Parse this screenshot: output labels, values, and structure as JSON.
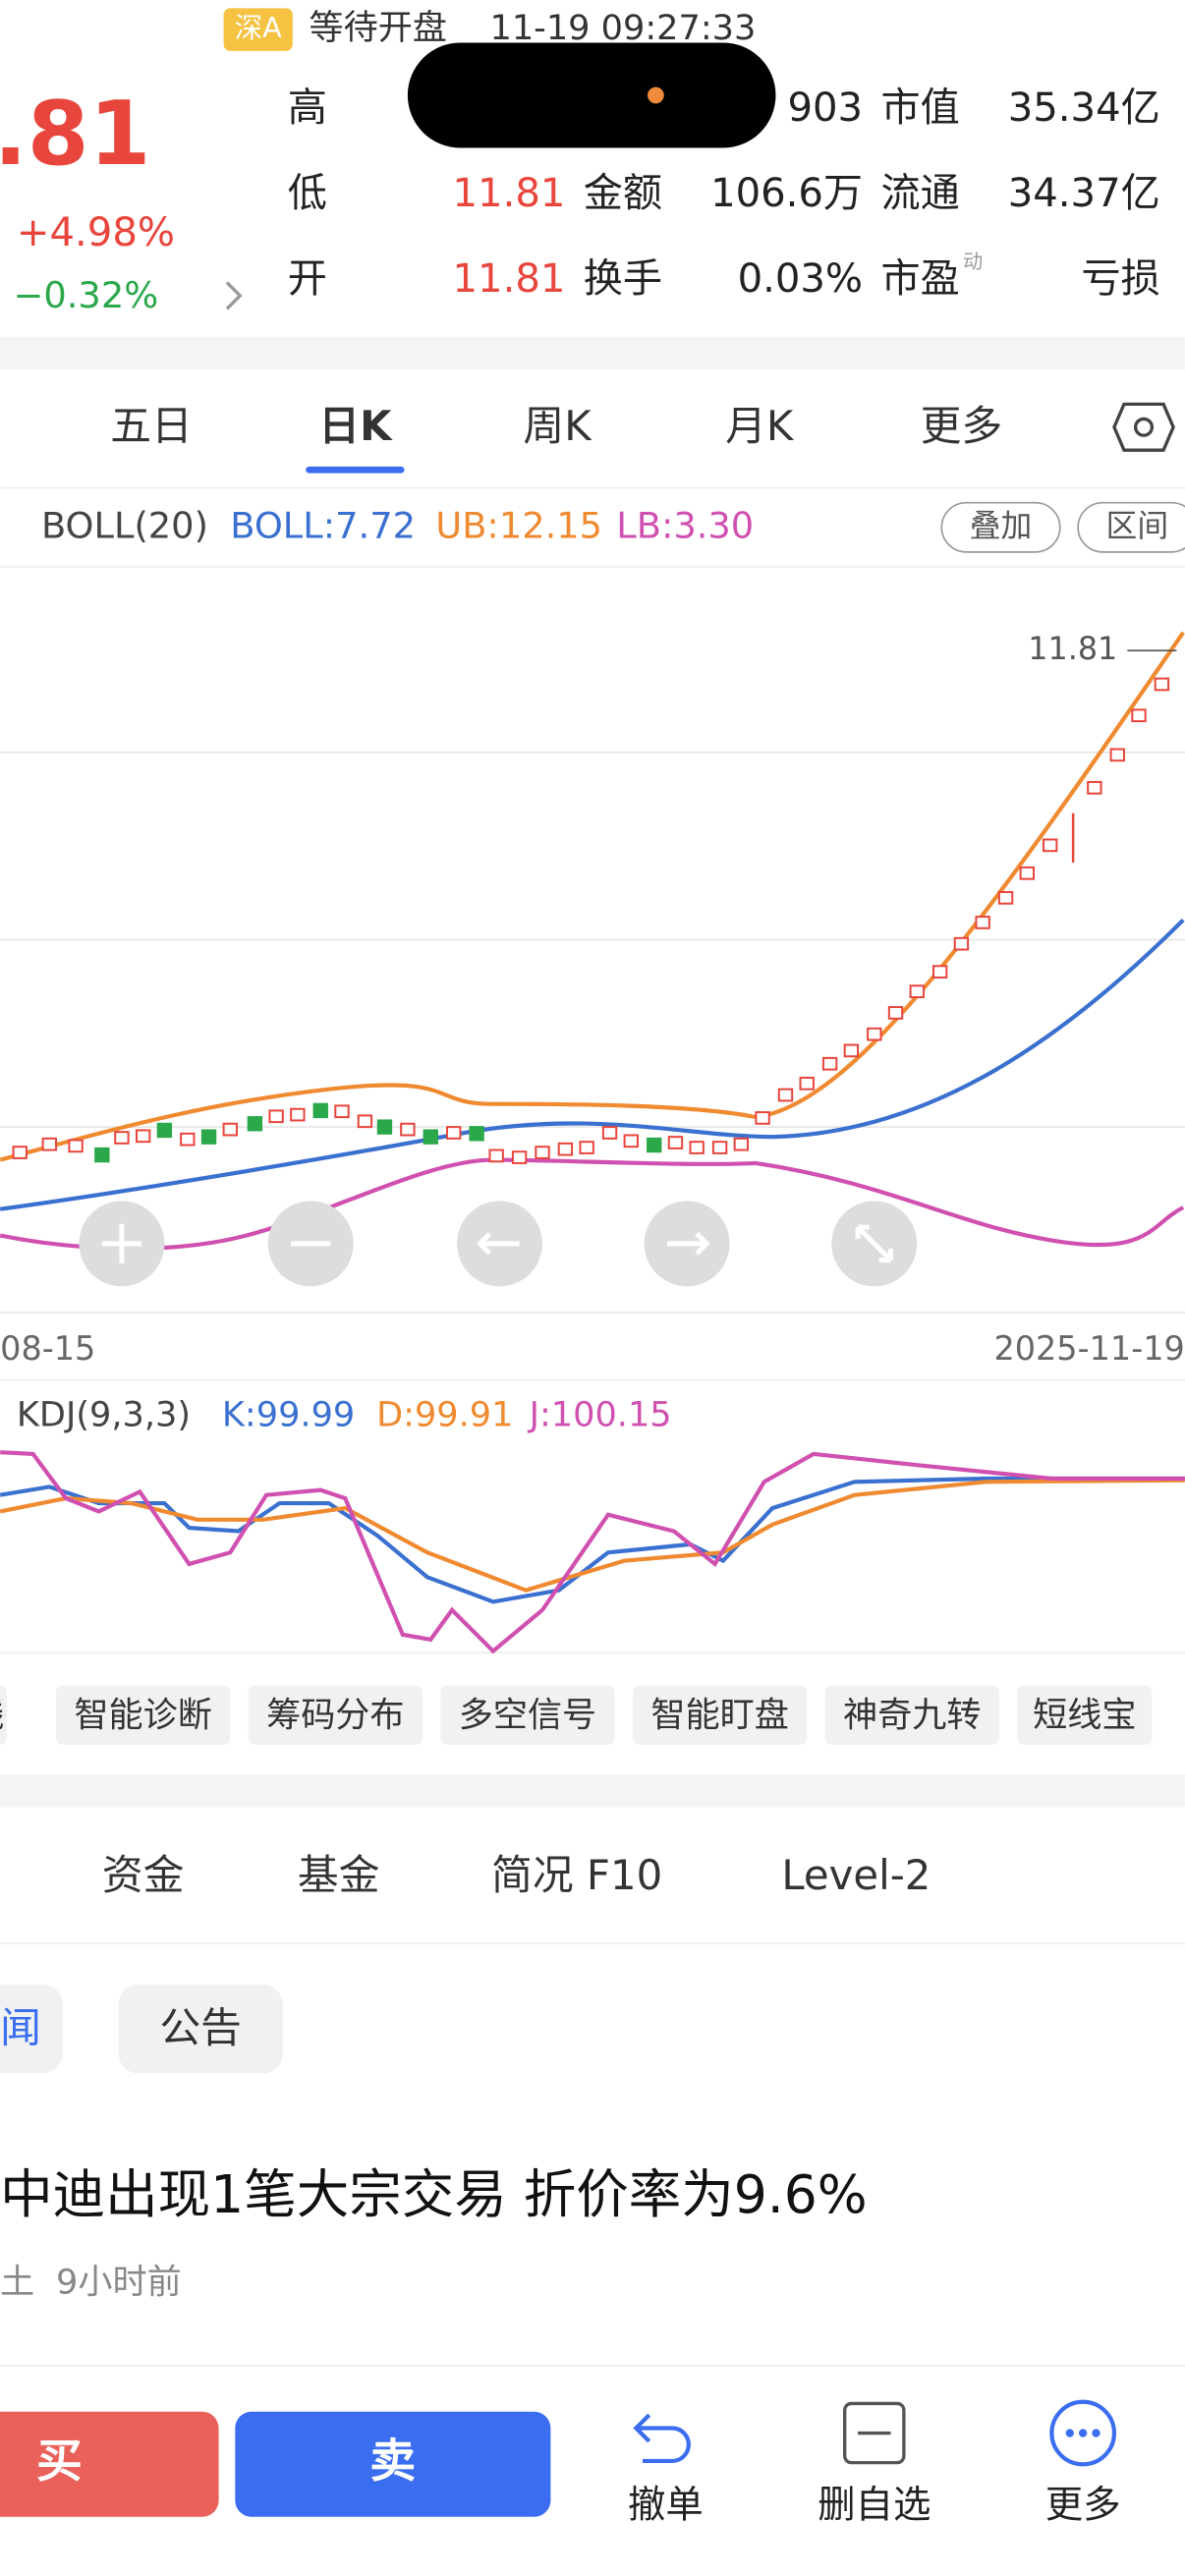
{
  "status": {
    "market": "深A",
    "state": "等待开盘",
    "time": "11-19 09:27:33"
  },
  "price": {
    "last": ".81",
    "change_pct": "+4.98%",
    "sub": "−0.32%"
  },
  "quote": {
    "high_label": "高",
    "high_value": "903",
    "mcap_label": "市值",
    "mcap_value": "35.34亿",
    "low_label": "低",
    "low_value": "11.81",
    "amount_label": "金额",
    "amount_value": "106.6万",
    "float_label": "流通",
    "float_value": "34.37亿",
    "open_label": "开",
    "open_value": "11.81",
    "turnover_label": "换手",
    "turnover_value": "0.03%",
    "pe_label": "市盈",
    "pe_sup": "动",
    "pe_value": "亏损"
  },
  "tabs": [
    "五日",
    "日K",
    "周K",
    "月K",
    "更多"
  ],
  "indicator": {
    "name": "BOLL(20)",
    "boll": "BOLL:7.72",
    "ub": "UB:12.15",
    "lb": "LB:3.30",
    "overlay": "叠加",
    "range": "区间"
  },
  "chart": {
    "price_label": "11.81",
    "start_date": "08-15",
    "end_date": "2025-11-19"
  },
  "kdj": {
    "name": "KDJ(9,3,3)",
    "k": "K:99.99",
    "d": "D:99.91",
    "j": "J:100.15"
  },
  "tools": [
    "线",
    "智能诊断",
    "筹码分布",
    "多空信号",
    "智能盯盘",
    "神奇九转",
    "短线宝"
  ],
  "info_tabs": [
    "资金",
    "基金",
    "简况 F10",
    "Level-2"
  ],
  "news_tabs": [
    "闻",
    "公告"
  ],
  "news": {
    "title": "中迪出现1笔大宗交易 折价率为9.6%",
    "source": "土",
    "time": "9小时前"
  },
  "bottom": {
    "buy": "买",
    "sell": "卖",
    "cancel": "撤单",
    "remove": "删自选",
    "more": "更多"
  }
}
